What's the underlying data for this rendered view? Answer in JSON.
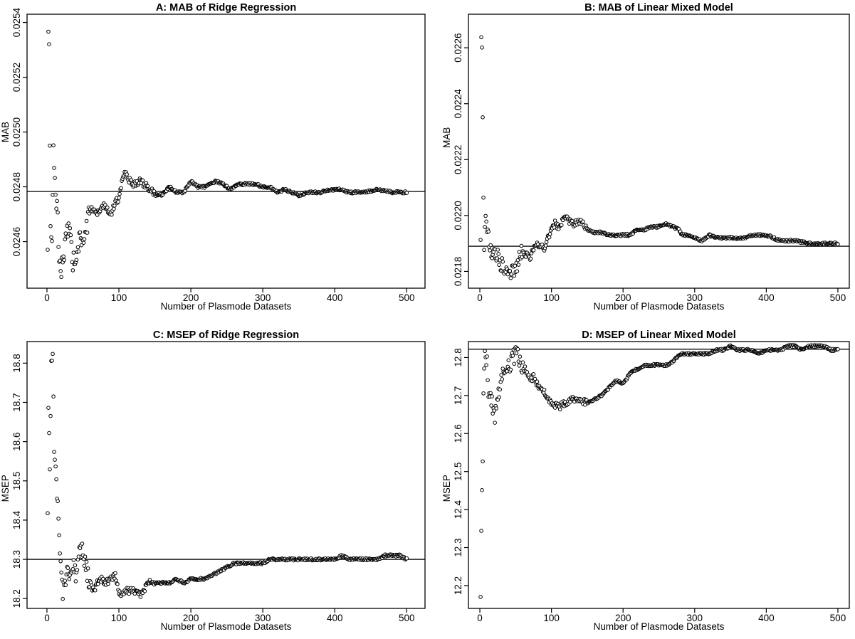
{
  "chart_data": [
    {
      "type": "scatter",
      "title": "A: MAB of Ridge Regression",
      "xlabel": "Number of Plasmode Datasets",
      "ylabel": "MAB",
      "xlim": [
        0,
        500
      ],
      "ylim": [
        0.02443,
        0.02543
      ],
      "xticks": [
        "0",
        "100",
        "200",
        "300",
        "400",
        "500"
      ],
      "yticks": [
        "0.0246",
        "0.0248",
        "0.0250",
        "0.0252",
        "0.0254"
      ],
      "reference_line": 0.024783,
      "grid": false,
      "legend": "none",
      "curve_knots": [
        [
          1,
          0.02455
        ],
        [
          2,
          0.02538
        ],
        [
          3,
          0.02531
        ],
        [
          5,
          0.02463
        ],
        [
          7,
          0.02462
        ],
        [
          9,
          0.02492
        ],
        [
          11,
          0.02481
        ],
        [
          13,
          0.02473
        ],
        [
          15,
          0.02471
        ],
        [
          17,
          0.02452
        ],
        [
          20,
          0.0245
        ],
        [
          23,
          0.02455
        ],
        [
          27,
          0.02461
        ],
        [
          30,
          0.02465
        ],
        [
          33,
          0.0246
        ],
        [
          36,
          0.02453
        ],
        [
          40,
          0.02452
        ],
        [
          45,
          0.0246
        ],
        [
          50,
          0.0246
        ],
        [
          55,
          0.02465
        ],
        [
          60,
          0.02472
        ],
        [
          66,
          0.02472
        ],
        [
          70,
          0.0247
        ],
        [
          75,
          0.02472
        ],
        [
          80,
          0.02474
        ],
        [
          85,
          0.02471
        ],
        [
          90,
          0.02471
        ],
        [
          95,
          0.02474
        ],
        [
          100,
          0.02476
        ],
        [
          104,
          0.02482
        ],
        [
          108,
          0.02486
        ],
        [
          112,
          0.02483
        ],
        [
          120,
          0.02481
        ],
        [
          130,
          0.02482
        ],
        [
          140,
          0.0248
        ],
        [
          150,
          0.02477
        ],
        [
          160,
          0.02477
        ],
        [
          170,
          0.0248
        ],
        [
          180,
          0.02478
        ],
        [
          190,
          0.02478
        ],
        [
          200,
          0.02482
        ],
        [
          210,
          0.0248
        ],
        [
          220,
          0.0248
        ],
        [
          235,
          0.02482
        ],
        [
          245,
          0.02481
        ],
        [
          255,
          0.02479
        ],
        [
          265,
          0.02481
        ],
        [
          275,
          0.02481
        ],
        [
          290,
          0.02481
        ],
        [
          300,
          0.0248
        ],
        [
          310,
          0.0248
        ],
        [
          320,
          0.02478
        ],
        [
          330,
          0.02479
        ],
        [
          340,
          0.02478
        ],
        [
          350,
          0.02477
        ],
        [
          365,
          0.02478
        ],
        [
          380,
          0.02478
        ],
        [
          395,
          0.02479
        ],
        [
          410,
          0.02479
        ],
        [
          420,
          0.02478
        ],
        [
          440,
          0.02478
        ],
        [
          460,
          0.02479
        ],
        [
          480,
          0.02478
        ],
        [
          500,
          0.02478
        ]
      ]
    },
    {
      "type": "scatter",
      "title": "B: MAB of Linear Mixed Model",
      "xlabel": "Number of Plasmode Datasets",
      "ylabel": "MAB",
      "xlim": [
        0,
        500
      ],
      "ylim": [
        0.02174,
        0.02272
      ],
      "xticks": [
        "0",
        "100",
        "200",
        "300",
        "400",
        "500"
      ],
      "yticks": [
        "0.0218",
        "0.0220",
        "0.0222",
        "0.0224",
        "0.0226"
      ],
      "reference_line": 0.02189,
      "grid": false,
      "legend": "none",
      "curve_knots": [
        [
          1,
          0.02189
        ],
        [
          2,
          0.02264
        ],
        [
          3,
          0.02258
        ],
        [
          4,
          0.02232
        ],
        [
          6,
          0.02185
        ],
        [
          8,
          0.02203
        ],
        [
          10,
          0.02195
        ],
        [
          13,
          0.02192
        ],
        [
          16,
          0.02188
        ],
        [
          20,
          0.02187
        ],
        [
          25,
          0.02186
        ],
        [
          30,
          0.02183
        ],
        [
          35,
          0.02182
        ],
        [
          40,
          0.02181
        ],
        [
          45,
          0.02179
        ],
        [
          50,
          0.02181
        ],
        [
          55,
          0.02184
        ],
        [
          60,
          0.02187
        ],
        [
          65,
          0.02186
        ],
        [
          70,
          0.02185
        ],
        [
          75,
          0.02188
        ],
        [
          80,
          0.0219
        ],
        [
          85,
          0.02189
        ],
        [
          90,
          0.02188
        ],
        [
          95,
          0.02192
        ],
        [
          100,
          0.02195
        ],
        [
          105,
          0.02197
        ],
        [
          110,
          0.02196
        ],
        [
          115,
          0.02198
        ],
        [
          120,
          0.02199
        ],
        [
          125,
          0.02198
        ],
        [
          130,
          0.02197
        ],
        [
          140,
          0.02198
        ],
        [
          150,
          0.02195
        ],
        [
          160,
          0.02194
        ],
        [
          170,
          0.02194
        ],
        [
          180,
          0.02193
        ],
        [
          190,
          0.02193
        ],
        [
          200,
          0.02193
        ],
        [
          210,
          0.02193
        ],
        [
          220,
          0.02195
        ],
        [
          230,
          0.02195
        ],
        [
          240,
          0.02196
        ],
        [
          250,
          0.02196
        ],
        [
          260,
          0.02197
        ],
        [
          270,
          0.02196
        ],
        [
          278,
          0.02195
        ],
        [
          282,
          0.02193
        ],
        [
          290,
          0.02193
        ],
        [
          300,
          0.02192
        ],
        [
          310,
          0.02191
        ],
        [
          320,
          0.02193
        ],
        [
          330,
          0.02192
        ],
        [
          340,
          0.02192
        ],
        [
          350,
          0.02192
        ],
        [
          360,
          0.02192
        ],
        [
          370,
          0.02192
        ],
        [
          380,
          0.02193
        ],
        [
          390,
          0.02193
        ],
        [
          400,
          0.02193
        ],
        [
          410,
          0.02192
        ],
        [
          420,
          0.02191
        ],
        [
          440,
          0.02191
        ],
        [
          460,
          0.0219
        ],
        [
          480,
          0.0219
        ],
        [
          500,
          0.0219
        ]
      ]
    },
    {
      "type": "scatter",
      "title": "C: MSEP of Ridge Regression",
      "xlabel": "Number of Plasmode Datasets",
      "ylabel": "MSEP",
      "xlim": [
        0,
        500
      ],
      "ylim": [
        18.175,
        18.855
      ],
      "xticks": [
        "0",
        "100",
        "200",
        "300",
        "400",
        "500"
      ],
      "yticks": [
        "18.2",
        "18.3",
        "18.4",
        "18.5",
        "18.6",
        "18.7",
        "18.8"
      ],
      "reference_line": 18.3,
      "grid": false,
      "legend": "none",
      "curve_knots": [
        [
          1,
          18.4
        ],
        [
          2,
          18.68
        ],
        [
          4,
          18.52
        ],
        [
          6,
          18.81
        ],
        [
          8,
          18.82
        ],
        [
          10,
          18.59
        ],
        [
          12,
          18.52
        ],
        [
          14,
          18.47
        ],
        [
          16,
          18.42
        ],
        [
          18,
          18.3
        ],
        [
          20,
          18.28
        ],
        [
          22,
          18.22
        ],
        [
          25,
          18.24
        ],
        [
          28,
          18.26
        ],
        [
          32,
          18.27
        ],
        [
          36,
          18.28
        ],
        [
          40,
          18.26
        ],
        [
          45,
          18.31
        ],
        [
          50,
          18.33
        ],
        [
          55,
          18.27
        ],
        [
          60,
          18.24
        ],
        [
          65,
          18.22
        ],
        [
          70,
          18.24
        ],
        [
          75,
          18.25
        ],
        [
          80,
          18.24
        ],
        [
          90,
          18.25
        ],
        [
          95,
          18.26
        ],
        [
          100,
          18.22
        ],
        [
          105,
          18.21
        ],
        [
          110,
          18.22
        ],
        [
          120,
          18.22
        ],
        [
          125,
          18.22
        ],
        [
          130,
          18.21
        ],
        [
          135,
          18.22
        ],
        [
          140,
          18.24
        ],
        [
          150,
          18.24
        ],
        [
          160,
          18.24
        ],
        [
          170,
          18.24
        ],
        [
          180,
          18.25
        ],
        [
          190,
          18.24
        ],
        [
          200,
          18.25
        ],
        [
          210,
          18.25
        ],
        [
          220,
          18.25
        ],
        [
          230,
          18.26
        ],
        [
          240,
          18.27
        ],
        [
          250,
          18.28
        ],
        [
          260,
          18.29
        ],
        [
          270,
          18.29
        ],
        [
          280,
          18.29
        ],
        [
          290,
          18.29
        ],
        [
          300,
          18.29
        ],
        [
          310,
          18.3
        ],
        [
          320,
          18.3
        ],
        [
          330,
          18.3
        ],
        [
          340,
          18.3
        ],
        [
          350,
          18.3
        ],
        [
          360,
          18.3
        ],
        [
          370,
          18.3
        ],
        [
          380,
          18.3
        ],
        [
          390,
          18.3
        ],
        [
          400,
          18.3
        ],
        [
          410,
          18.31
        ],
        [
          420,
          18.3
        ],
        [
          430,
          18.3
        ],
        [
          440,
          18.3
        ],
        [
          450,
          18.3
        ],
        [
          460,
          18.3
        ],
        [
          470,
          18.31
        ],
        [
          480,
          18.31
        ],
        [
          490,
          18.31
        ],
        [
          500,
          18.3
        ]
      ]
    },
    {
      "type": "scatter",
      "title": "D: MSEP of Linear Mixed Model",
      "xlabel": "Number of Plasmode Datasets",
      "ylabel": "MSEP",
      "xlim": [
        0,
        500
      ],
      "ylim": [
        12.14,
        12.842
      ],
      "xticks": [
        "0",
        "100",
        "200",
        "300",
        "400",
        "500"
      ],
      "yticks": [
        "12.2",
        "12.3",
        "12.4",
        "12.5",
        "12.6",
        "12.7",
        "12.8"
      ],
      "reference_line": 12.822,
      "grid": false,
      "legend": "none",
      "curve_knots": [
        [
          1,
          12.15
        ],
        [
          2,
          12.33
        ],
        [
          3,
          12.47
        ],
        [
          4,
          12.53
        ],
        [
          5,
          12.69
        ],
        [
          6,
          12.75
        ],
        [
          7,
          12.8
        ],
        [
          8,
          12.82
        ],
        [
          10,
          12.78
        ],
        [
          12,
          12.72
        ],
        [
          15,
          12.7
        ],
        [
          18,
          12.66
        ],
        [
          21,
          12.64
        ],
        [
          25,
          12.69
        ],
        [
          30,
          12.74
        ],
        [
          35,
          12.76
        ],
        [
          40,
          12.77
        ],
        [
          45,
          12.79
        ],
        [
          50,
          12.81
        ],
        [
          55,
          12.8
        ],
        [
          60,
          12.78
        ],
        [
          65,
          12.76
        ],
        [
          70,
          12.74
        ],
        [
          75,
          12.75
        ],
        [
          80,
          12.73
        ],
        [
          85,
          12.72
        ],
        [
          90,
          12.71
        ],
        [
          95,
          12.69
        ],
        [
          100,
          12.68
        ],
        [
          110,
          12.67
        ],
        [
          120,
          12.68
        ],
        [
          130,
          12.69
        ],
        [
          140,
          12.69
        ],
        [
          150,
          12.68
        ],
        [
          160,
          12.69
        ],
        [
          170,
          12.7
        ],
        [
          180,
          12.72
        ],
        [
          190,
          12.74
        ],
        [
          200,
          12.73
        ],
        [
          210,
          12.76
        ],
        [
          220,
          12.77
        ],
        [
          230,
          12.78
        ],
        [
          240,
          12.78
        ],
        [
          250,
          12.78
        ],
        [
          260,
          12.78
        ],
        [
          270,
          12.79
        ],
        [
          280,
          12.81
        ],
        [
          290,
          12.81
        ],
        [
          300,
          12.81
        ],
        [
          310,
          12.81
        ],
        [
          320,
          12.81
        ],
        [
          330,
          12.82
        ],
        [
          340,
          12.82
        ],
        [
          350,
          12.83
        ],
        [
          360,
          12.82
        ],
        [
          370,
          12.82
        ],
        [
          380,
          12.82
        ],
        [
          390,
          12.81
        ],
        [
          400,
          12.82
        ],
        [
          410,
          12.82
        ],
        [
          420,
          12.82
        ],
        [
          430,
          12.83
        ],
        [
          440,
          12.83
        ],
        [
          450,
          12.82
        ],
        [
          460,
          12.83
        ],
        [
          470,
          12.83
        ],
        [
          480,
          12.83
        ],
        [
          490,
          12.82
        ],
        [
          500,
          12.82
        ]
      ]
    }
  ]
}
